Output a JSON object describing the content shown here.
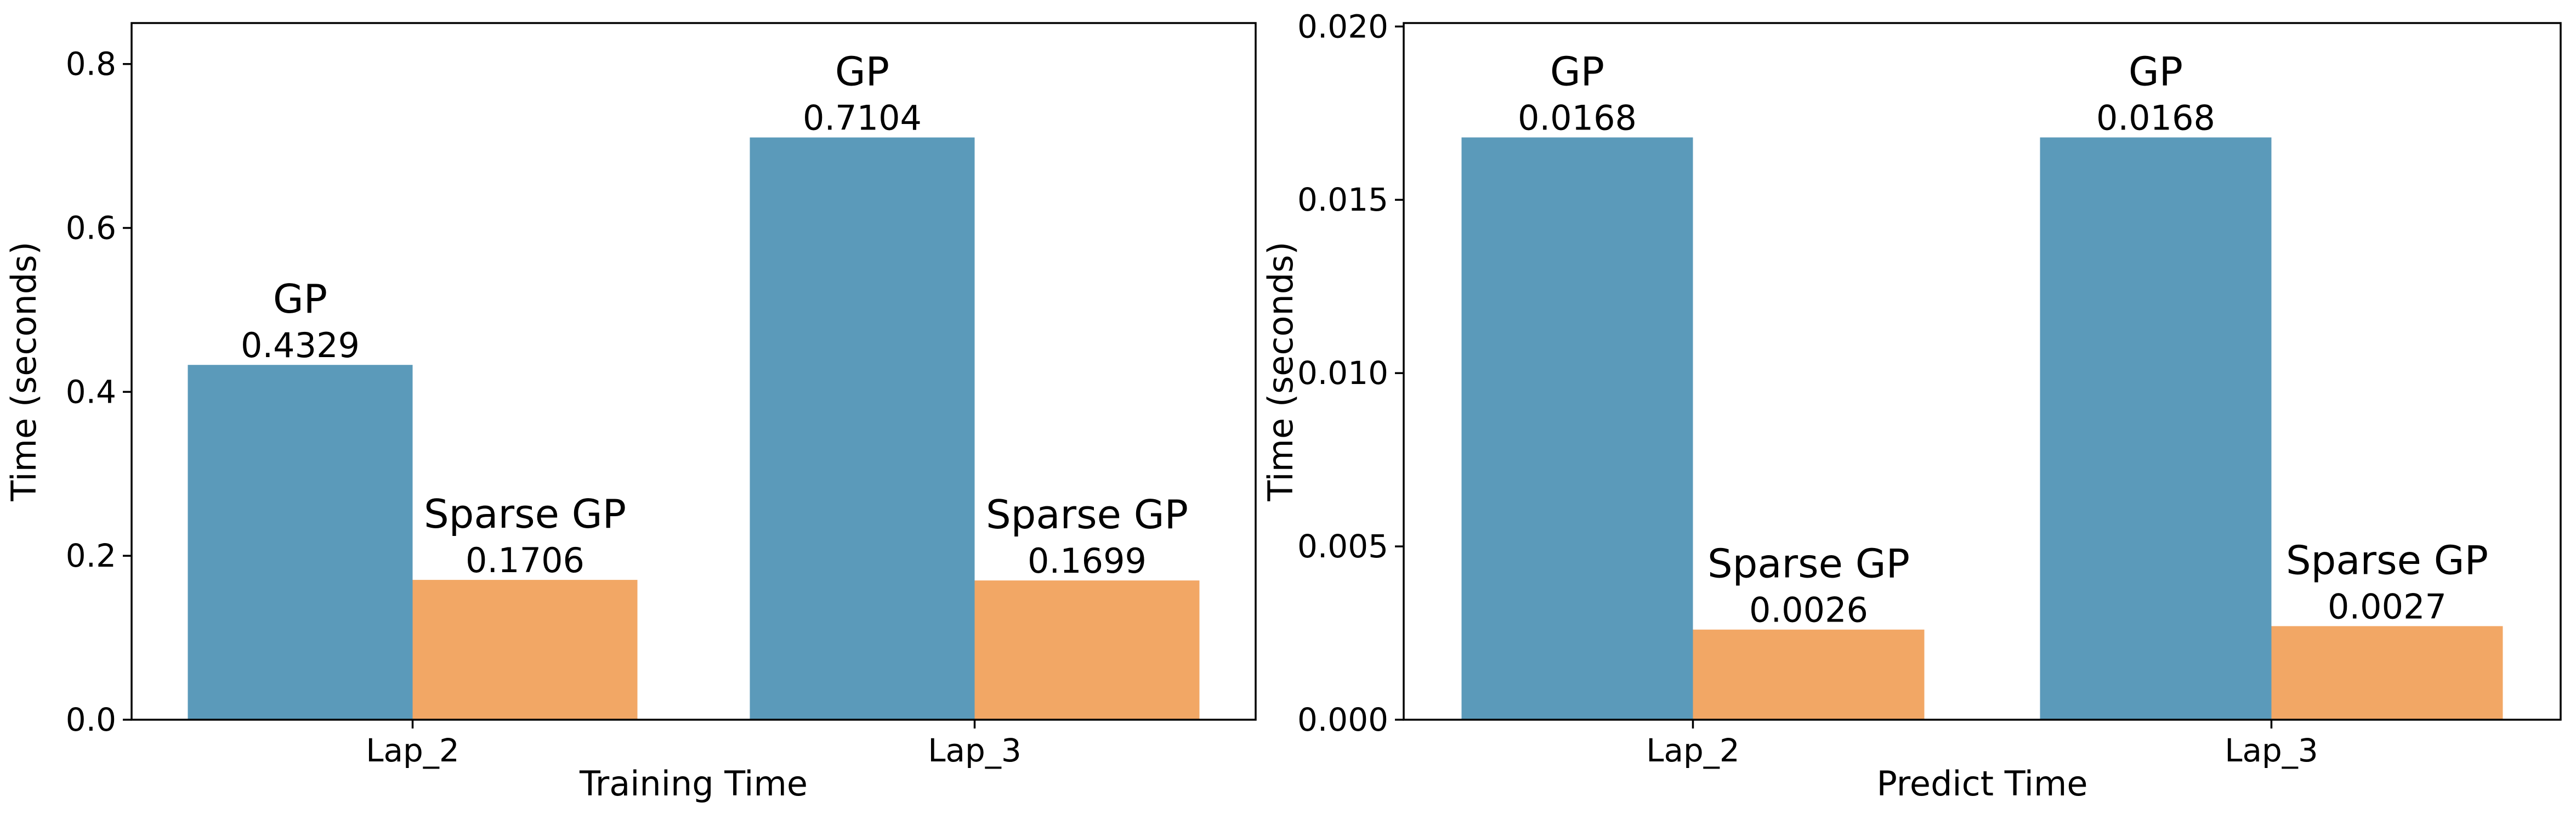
{
  "colors": {
    "GP": "#5b9aba",
    "Sparse GP": "#f2a765"
  },
  "chart_data": [
    {
      "type": "bar",
      "categories": [
        "Lap_2",
        "Lap_3"
      ],
      "series": [
        {
          "name": "GP",
          "values": [
            0.4329,
            0.7104
          ],
          "labels": [
            "0.4329",
            "0.7104"
          ]
        },
        {
          "name": "Sparse GP",
          "values": [
            0.1706,
            0.1699
          ],
          "labels": [
            "0.1706",
            "0.1699"
          ]
        }
      ],
      "xlabel": "Training Time",
      "ylabel": "Time (seconds)",
      "ylim": [
        0,
        0.85
      ],
      "yticks": [
        0.0,
        0.2,
        0.4,
        0.6,
        0.8
      ],
      "ytick_labels": [
        "0.0",
        "0.2",
        "0.4",
        "0.6",
        "0.8"
      ],
      "grid": false,
      "legend": "none"
    },
    {
      "type": "bar",
      "categories": [
        "Lap_2",
        "Lap_3"
      ],
      "series": [
        {
          "name": "GP",
          "values": [
            0.0168,
            0.0168
          ],
          "labels": [
            "0.0168",
            "0.0168"
          ]
        },
        {
          "name": "Sparse GP",
          "values": [
            0.0026,
            0.0027
          ],
          "labels": [
            "0.0026",
            "0.0027"
          ]
        }
      ],
      "xlabel": "Predict Time",
      "ylabel": "Time (seconds)",
      "ylim": [
        0,
        0.0201
      ],
      "yticks": [
        0.0,
        0.005,
        0.01,
        0.015,
        0.02
      ],
      "ytick_labels": [
        "0.000",
        "0.005",
        "0.010",
        "0.015",
        "0.020"
      ],
      "grid": false,
      "legend": "none"
    }
  ]
}
